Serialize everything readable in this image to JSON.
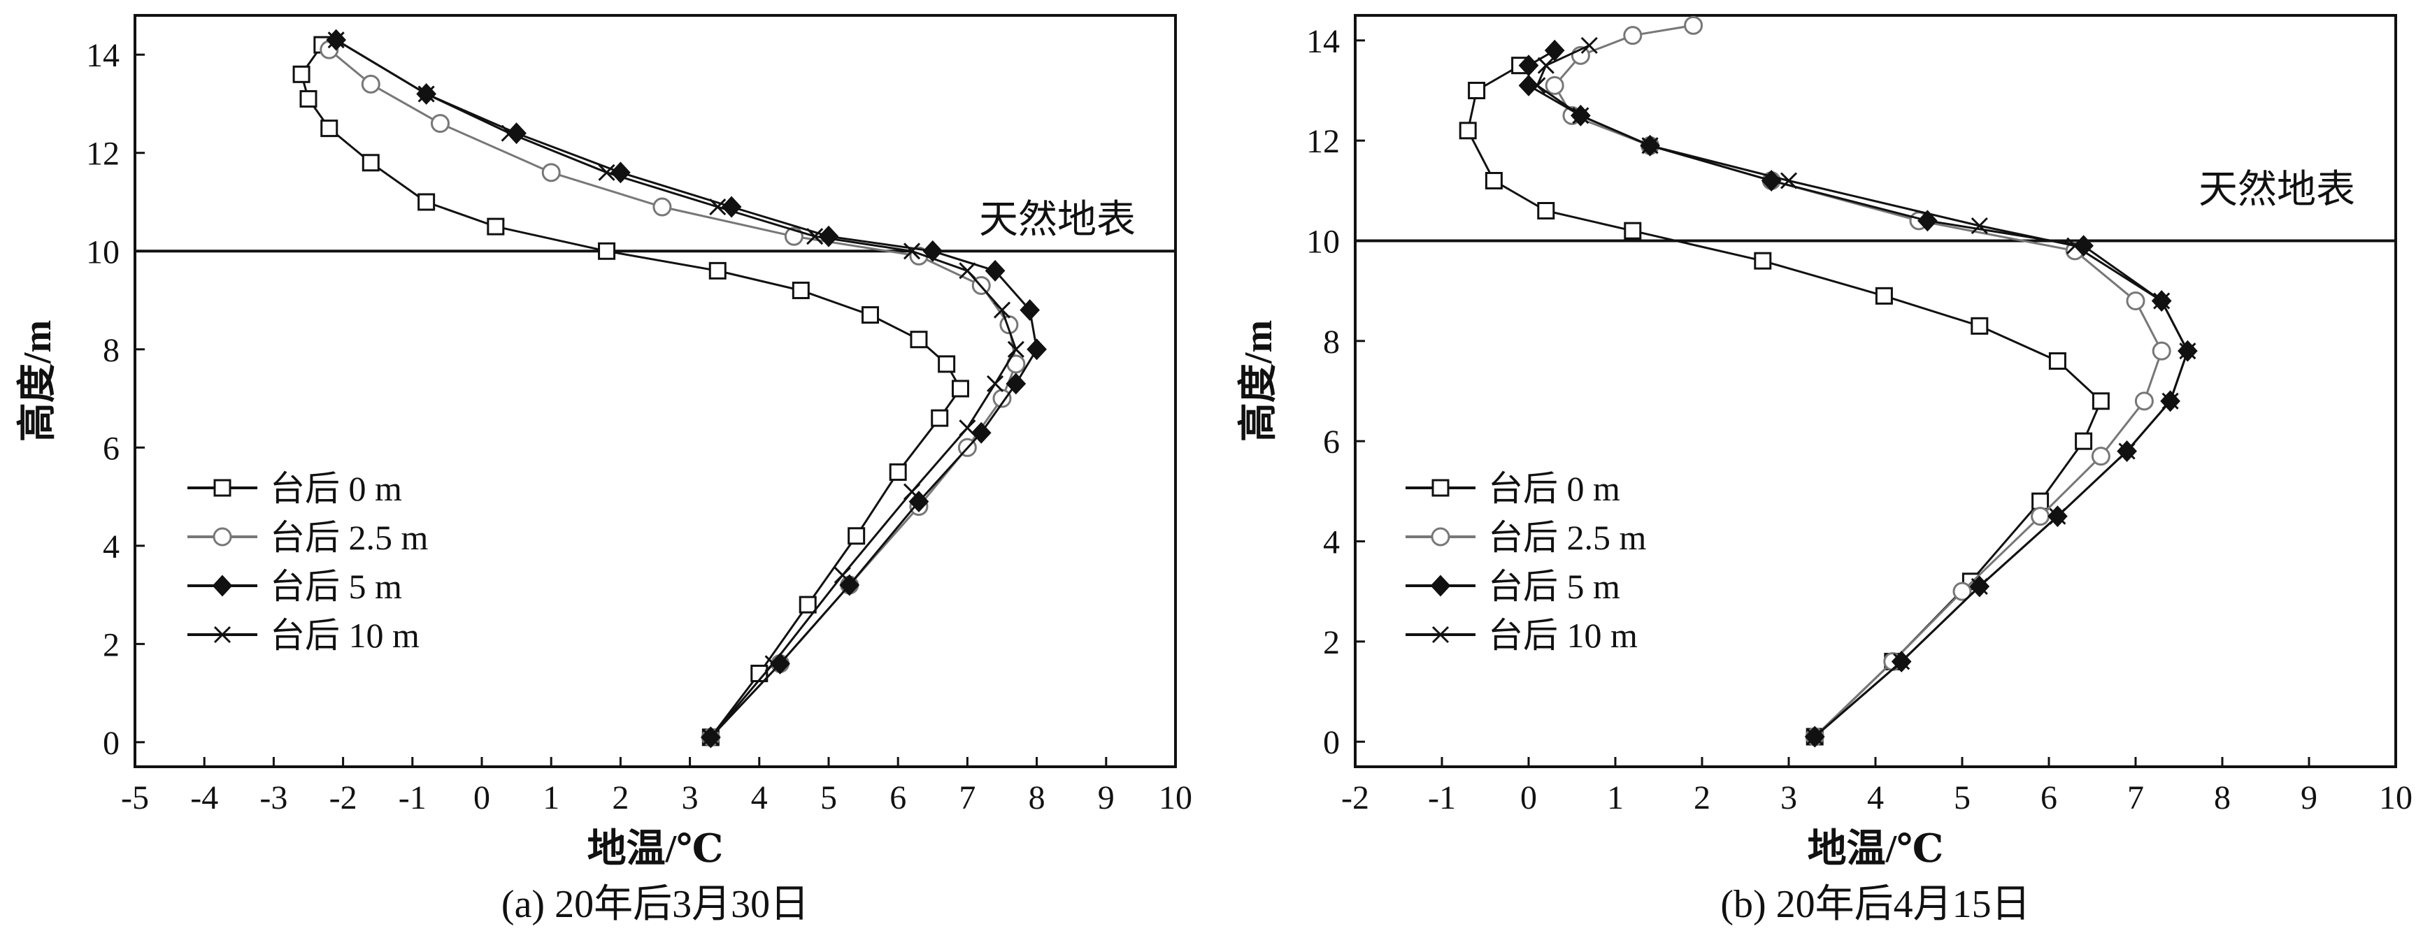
{
  "figure": {
    "panels": [
      {
        "caption": "(a) 20年后3月30日"
      },
      {
        "caption": "(b) 20年后4月15日"
      }
    ]
  },
  "chart_data": [
    {
      "type": "line",
      "panel": "a",
      "caption": "(a) 20年后3月30日",
      "xlabel": "地温/℃",
      "ylabel": "高度/m",
      "xlim": [
        -5,
        10
      ],
      "ylim": [
        -0.5,
        14.8
      ],
      "xticks": [
        -5,
        -4,
        -3,
        -2,
        -1,
        0,
        1,
        2,
        3,
        4,
        5,
        6,
        7,
        8,
        9,
        10
      ],
      "yticks": [
        0,
        2,
        4,
        6,
        8,
        10,
        12,
        14
      ],
      "grid": false,
      "legend_position": "left-middle",
      "reference_line": {
        "y": 10,
        "label": "天然地表"
      },
      "series": [
        {
          "name": "台后 0 m",
          "marker": "open-square",
          "color": "#111111",
          "x": [
            3.3,
            4.0,
            4.7,
            5.4,
            6.0,
            6.6,
            6.9,
            6.7,
            6.3,
            5.6,
            4.6,
            3.4,
            1.8,
            0.2,
            -0.8,
            -1.6,
            -2.2,
            -2.5,
            -2.6,
            -2.3
          ],
          "y": [
            0.1,
            1.4,
            2.8,
            4.2,
            5.5,
            6.6,
            7.2,
            7.7,
            8.2,
            8.7,
            9.2,
            9.6,
            10.0,
            10.5,
            11.0,
            11.8,
            12.5,
            13.1,
            13.6,
            14.2
          ]
        },
        {
          "name": "台后 2.5 m",
          "marker": "open-circle",
          "color": "#777777",
          "x": [
            3.3,
            4.3,
            5.3,
            6.3,
            7.0,
            7.5,
            7.7,
            7.6,
            7.2,
            6.3,
            4.5,
            2.6,
            1.0,
            -0.6,
            -1.6,
            -2.2
          ],
          "y": [
            0.1,
            1.6,
            3.2,
            4.8,
            6.0,
            7.0,
            7.7,
            8.5,
            9.3,
            9.9,
            10.3,
            10.9,
            11.6,
            12.6,
            13.4,
            14.1
          ]
        },
        {
          "name": "台后 5 m",
          "marker": "filled-diamond",
          "color": "#111111",
          "x": [
            3.3,
            4.3,
            5.3,
            6.3,
            7.2,
            7.7,
            8.0,
            7.9,
            7.4,
            6.5,
            5.0,
            3.6,
            2.0,
            0.5,
            -0.8,
            -2.1
          ],
          "y": [
            0.1,
            1.6,
            3.2,
            4.9,
            6.3,
            7.3,
            8.0,
            8.8,
            9.6,
            10.0,
            10.3,
            10.9,
            11.6,
            12.4,
            13.2,
            14.3
          ]
        },
        {
          "name": "台后 10 m",
          "marker": "x",
          "color": "#111111",
          "x": [
            3.3,
            4.2,
            5.2,
            6.2,
            7.0,
            7.4,
            7.7,
            7.5,
            7.0,
            6.2,
            4.8,
            3.4,
            1.8,
            0.4,
            -0.8,
            -2.1
          ],
          "y": [
            0.1,
            1.6,
            3.4,
            5.1,
            6.4,
            7.3,
            8.0,
            8.8,
            9.6,
            10.0,
            10.3,
            10.9,
            11.6,
            12.4,
            13.2,
            14.3
          ]
        }
      ]
    },
    {
      "type": "line",
      "panel": "b",
      "caption": "(b) 20年后4月15日",
      "xlabel": "地温/℃",
      "ylabel": "高度/m",
      "xlim": [
        -2,
        10
      ],
      "ylim": [
        -0.5,
        14.5
      ],
      "xticks": [
        -2,
        -1,
        0,
        1,
        2,
        3,
        4,
        5,
        6,
        7,
        8,
        9,
        10
      ],
      "yticks": [
        0,
        2,
        4,
        6,
        8,
        10,
        12,
        14
      ],
      "grid": false,
      "legend_position": "left-middle",
      "reference_line": {
        "y": 10,
        "label": "天然地表"
      },
      "series": [
        {
          "name": "台后 0 m",
          "marker": "open-square",
          "color": "#111111",
          "x": [
            3.3,
            4.2,
            5.1,
            5.9,
            6.4,
            6.6,
            6.1,
            5.2,
            4.1,
            2.7,
            1.2,
            0.2,
            -0.4,
            -0.7,
            -0.6,
            -0.1
          ],
          "y": [
            0.1,
            1.6,
            3.2,
            4.8,
            6.0,
            6.8,
            7.6,
            8.3,
            8.9,
            9.6,
            10.2,
            10.6,
            11.2,
            12.2,
            13.0,
            13.5
          ]
        },
        {
          "name": "台后 2.5 m",
          "marker": "open-circle",
          "color": "#777777",
          "x": [
            3.3,
            4.2,
            5.0,
            5.9,
            6.6,
            7.1,
            7.3,
            7.0,
            6.3,
            4.5,
            2.8,
            1.4,
            0.5,
            0.3,
            0.6,
            1.2,
            1.9
          ],
          "y": [
            0.1,
            1.6,
            3.0,
            4.5,
            5.7,
            6.8,
            7.8,
            8.8,
            9.8,
            10.4,
            11.2,
            11.9,
            12.5,
            13.1,
            13.7,
            14.1,
            14.3
          ]
        },
        {
          "name": "台后 5 m",
          "marker": "filled-diamond",
          "color": "#111111",
          "x": [
            3.3,
            4.3,
            5.2,
            6.1,
            6.9,
            7.4,
            7.6,
            7.3,
            6.4,
            4.6,
            2.8,
            1.4,
            0.6,
            0.0,
            0.0,
            0.3
          ],
          "y": [
            0.1,
            1.6,
            3.1,
            4.5,
            5.8,
            6.8,
            7.8,
            8.8,
            9.9,
            10.4,
            11.2,
            11.9,
            12.5,
            13.1,
            13.5,
            13.8
          ]
        },
        {
          "name": "台后 10 m",
          "marker": "x",
          "color": "#111111",
          "x": [
            3.3,
            4.3,
            5.2,
            6.1,
            6.9,
            7.4,
            7.6,
            7.3,
            6.3,
            5.2,
            3.0,
            1.4,
            0.6,
            0.1,
            0.2,
            0.7
          ],
          "y": [
            0.1,
            1.6,
            3.1,
            4.5,
            5.8,
            6.8,
            7.8,
            8.8,
            9.9,
            10.3,
            11.2,
            11.9,
            12.5,
            13.1,
            13.5,
            13.9
          ]
        }
      ]
    }
  ]
}
